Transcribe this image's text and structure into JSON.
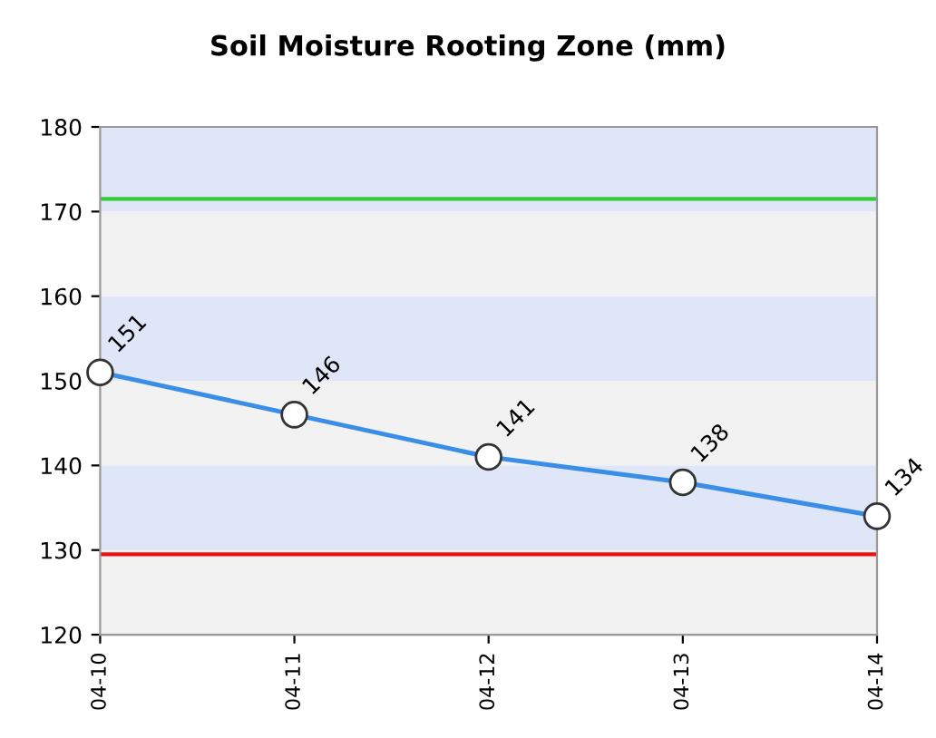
{
  "chart_data": {
    "type": "line",
    "title": "Soil Moisture Rooting Zone (mm)",
    "categories": [
      "04-10",
      "04-11",
      "04-12",
      "04-13",
      "04-14"
    ],
    "series": [
      {
        "color": "#3a8ee6",
        "values": [
          151,
          146,
          141,
          138,
          134
        ]
      }
    ],
    "ylim": [
      120,
      180
    ],
    "yticks": [
      120,
      130,
      140,
      150,
      160,
      170,
      180
    ],
    "marker": "circle",
    "line_style": "solid",
    "data_labels": true,
    "grid": false,
    "legend": false,
    "ref_lines": [
      {
        "axis": "y",
        "value": 171.5,
        "color": "#33cc33"
      },
      {
        "axis": "y",
        "value": 129.5,
        "color": "#ee1111"
      }
    ],
    "bands": [
      {
        "axis": "y",
        "from": 120,
        "to": 130,
        "color": "#f2f2f2"
      },
      {
        "axis": "y",
        "from": 130,
        "to": 140,
        "color": "#dfe6f8"
      },
      {
        "axis": "y",
        "from": 140,
        "to": 150,
        "color": "#f2f2f2"
      },
      {
        "axis": "y",
        "from": 150,
        "to": 160,
        "color": "#dfe6f8"
      },
      {
        "axis": "y",
        "from": 160,
        "to": 170,
        "color": "#f2f2f2"
      },
      {
        "axis": "y",
        "from": 170,
        "to": 180,
        "color": "#dfe6f8"
      }
    ]
  }
}
